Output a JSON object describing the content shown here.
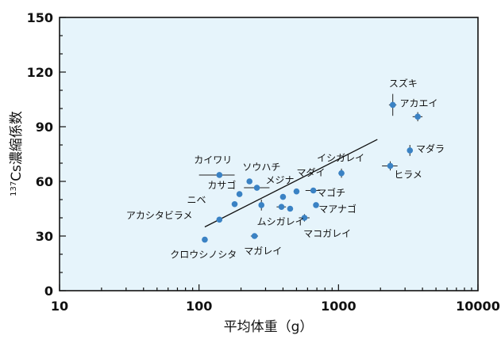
{
  "chart_data": {
    "type": "scatter",
    "title": "",
    "xlabel": "平均体重（g）",
    "ylabel_prefix": "137",
    "ylabel_main": "Cs濃縮係数",
    "xscale": "log",
    "xlim": [
      10,
      10000
    ],
    "ylim": [
      0,
      150
    ],
    "x_ticks": [
      10,
      100,
      1000,
      10000
    ],
    "x_tick_labels": [
      "10",
      "100",
      "1000",
      "10000"
    ],
    "y_ticks": [
      0,
      30,
      60,
      90,
      120,
      150
    ],
    "y_tick_labels": [
      "0",
      "30",
      "60",
      "90",
      "120",
      "150"
    ],
    "grid": false,
    "point_color": "#3a82c4",
    "plot_background": "#e6f4fb",
    "regression_line": {
      "x": [
        110,
        1900
      ],
      "y": [
        35,
        83
      ]
    },
    "points": [
      {
        "name": "スズキ",
        "x": 2450,
        "y": 102,
        "xerr": [
          2300,
          2600
        ],
        "yerr": [
          96,
          108
        ]
      },
      {
        "name": "アカエイ",
        "x": 3700,
        "y": 95.5,
        "xerr": [
          3400,
          4000
        ],
        "yerr": [
          93,
          98
        ]
      },
      {
        "name": "マダラ",
        "x": 3250,
        "y": 77,
        "xerr": [
          3150,
          3350
        ],
        "yerr": [
          74,
          80
        ]
      },
      {
        "name": "ヒラメ",
        "x": 2350,
        "y": 68.5,
        "xerr": [
          2050,
          2650
        ],
        "yerr": [
          66,
          71
        ]
      },
      {
        "name": "イシガレイ",
        "x": 1050,
        "y": 64.5,
        "xerr": [
          1000,
          1100
        ],
        "yerr": [
          62,
          67
        ]
      },
      {
        "name": "カイワリ",
        "x": 140,
        "y": 63.5,
        "xerr": [
          100,
          180
        ],
        "yerr": [
          62.5,
          64.5
        ]
      },
      {
        "name": "ソウハチ",
        "x": 230,
        "y": 60,
        "xerr": [
          225,
          235
        ],
        "yerr": [
          59,
          61
        ]
      },
      {
        "name": "カサゴ",
        "x": 195,
        "y": 53,
        "xerr": [
          190,
          200
        ],
        "yerr": [
          52,
          54
        ]
      },
      {
        "name": "",
        "x": 260,
        "y": 56.5,
        "xerr": [
          210,
          320
        ],
        "yerr": [
          55.5,
          57.5
        ]
      },
      {
        "name": "メジナ",
        "x": 400,
        "y": 51.5,
        "xerr": [
          390,
          410
        ],
        "yerr": [
          50.5,
          52.5
        ]
      },
      {
        "name": "マダイ",
        "x": 500,
        "y": 54.5,
        "xerr": [
          490,
          510
        ],
        "yerr": [
          53.5,
          55.5
        ]
      },
      {
        "name": "マゴチ",
        "x": 660,
        "y": 55,
        "xerr": [
          580,
          740
        ],
        "yerr": [
          54,
          56
        ]
      },
      {
        "name": "ニベ",
        "x": 180,
        "y": 47.5,
        "xerr": [
          175,
          185
        ],
        "yerr": [
          46.5,
          48.5
        ]
      },
      {
        "name": "",
        "x": 280,
        "y": 47,
        "xerr": [
          275,
          285
        ],
        "yerr": [
          44,
          50
        ]
      },
      {
        "name": "",
        "x": 390,
        "y": 46,
        "xerr": [
          360,
          420
        ],
        "yerr": [
          45,
          47
        ]
      },
      {
        "name": "",
        "x": 450,
        "y": 45,
        "xerr": [
          445,
          455
        ],
        "yerr": [
          44,
          46
        ]
      },
      {
        "name": "マアナゴ",
        "x": 690,
        "y": 47,
        "xerr": [
          680,
          700
        ],
        "yerr": [
          46,
          48
        ]
      },
      {
        "name": "アカシタビラメ",
        "x": 140,
        "y": 39,
        "xerr": [
          135,
          145
        ],
        "yerr": [
          38,
          40
        ]
      },
      {
        "name": "ムシガレイ",
        "x": 570,
        "y": 40,
        "xerr": [
          520,
          620
        ],
        "yerr": [
          38,
          42
        ]
      },
      {
        "name": "マガレイ",
        "x": 250,
        "y": 30,
        "xerr": [
          235,
          265
        ],
        "yerr": [
          29,
          31
        ]
      },
      {
        "name": "クロウシノシタ",
        "x": 110,
        "y": 28,
        "xerr": [
          108,
          112
        ],
        "yerr": [
          27,
          29
        ]
      }
    ],
    "labels": [
      {
        "text": "スズキ",
        "x": 2300,
        "y": 112
      },
      {
        "text": "アカエイ",
        "x": 2750,
        "y": 101
      },
      {
        "text": "マダラ",
        "x": 3600,
        "y": 76
      },
      {
        "text": "ヒラメ",
        "x": 2500,
        "y": 62
      },
      {
        "text": "イシガレイ",
        "x": 700,
        "y": 71
      },
      {
        "text": "カイワリ",
        "x": 92,
        "y": 70
      },
      {
        "text": "ソウハチ",
        "x": 205,
        "y": 66
      },
      {
        "text": "マダイ",
        "x": 500,
        "y": 63
      },
      {
        "text": "メジナ",
        "x": 300,
        "y": 59
      },
      {
        "text": "カサゴ",
        "x": 115,
        "y": 56
      },
      {
        "text": "マゴチ",
        "x": 700,
        "y": 52
      },
      {
        "text": "ニベ",
        "x": 82,
        "y": 48
      },
      {
        "text": "マアナゴ",
        "x": 720,
        "y": 43
      },
      {
        "text": "アカシタビラメ",
        "x": 30,
        "y": 39.5
      },
      {
        "text": "ムシガレイ",
        "x": 260,
        "y": 36
      },
      {
        "text": "マコガレイ",
        "x": 560,
        "y": 29.5
      },
      {
        "text": "マガレイ",
        "x": 210,
        "y": 20
      },
      {
        "text": "クロウシノシタ",
        "x": 62,
        "y": 18
      }
    ]
  }
}
